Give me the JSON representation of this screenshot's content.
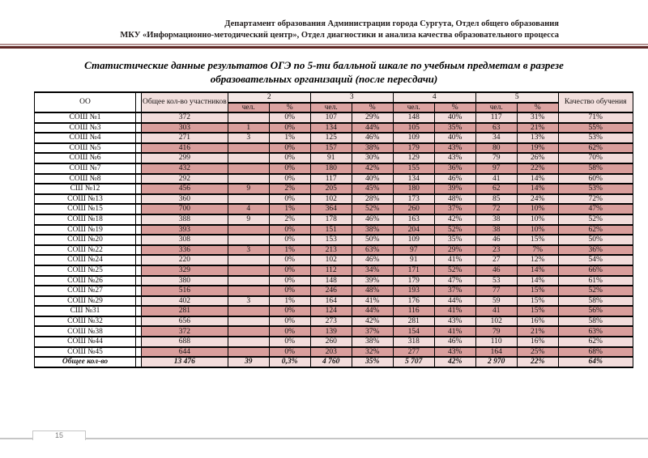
{
  "page_header": {
    "line1": "Департамент образования Администрации города Сургута, Отдел общего образования",
    "line2": "МКУ «Информационно-методический центр», Отдел диагностики и анализа качества образовательного процесса"
  },
  "title": "Статистические данные результатов ОГЭ по 5-ти балльной шкале по учебным предметам в разрезе образовательных организаций (после пересдачи)",
  "table": {
    "headers": {
      "oo": "ОО",
      "total_participants": "Общее кол-во участников",
      "grades": [
        "2",
        "3",
        "4",
        "5"
      ],
      "sub_people": "чел.",
      "sub_percent": "%",
      "quality": "Качество обучения"
    },
    "rows": [
      {
        "name": "СОШ №1",
        "cells": [
          "372",
          "",
          "0%",
          "107",
          "29%",
          "148",
          "40%",
          "117",
          "31%",
          "71%"
        ]
      },
      {
        "name": "СОШ №3",
        "cells": [
          "303",
          "1",
          "0%",
          "134",
          "44%",
          "105",
          "35%",
          "63",
          "21%",
          "55%"
        ]
      },
      {
        "name": "СОШ №4",
        "cells": [
          "271",
          "3",
          "1%",
          "125",
          "46%",
          "109",
          "40%",
          "34",
          "13%",
          "53%"
        ]
      },
      {
        "name": "СОШ №5",
        "cells": [
          "416",
          "",
          "0%",
          "157",
          "38%",
          "179",
          "43%",
          "80",
          "19%",
          "62%"
        ]
      },
      {
        "name": "СОШ №6",
        "cells": [
          "299",
          "",
          "0%",
          "91",
          "30%",
          "129",
          "43%",
          "79",
          "26%",
          "70%"
        ]
      },
      {
        "name": "СОШ №7",
        "cells": [
          "432",
          "",
          "0%",
          "180",
          "42%",
          "155",
          "36%",
          "97",
          "22%",
          "58%"
        ]
      },
      {
        "name": "СОШ №8",
        "cells": [
          "292",
          "",
          "0%",
          "117",
          "40%",
          "134",
          "46%",
          "41",
          "14%",
          "60%"
        ]
      },
      {
        "name": "СШ №12",
        "cells": [
          "456",
          "9",
          "2%",
          "205",
          "45%",
          "180",
          "39%",
          "62",
          "14%",
          "53%"
        ]
      },
      {
        "name": "СОШ №13",
        "cells": [
          "360",
          "",
          "0%",
          "102",
          "28%",
          "173",
          "48%",
          "85",
          "24%",
          "72%"
        ]
      },
      {
        "name": "СОШ №15",
        "cells": [
          "700",
          "4",
          "1%",
          "364",
          "52%",
          "260",
          "37%",
          "72",
          "10%",
          "47%"
        ]
      },
      {
        "name": "СОШ №18",
        "cells": [
          "388",
          "9",
          "2%",
          "178",
          "46%",
          "163",
          "42%",
          "38",
          "10%",
          "52%"
        ]
      },
      {
        "name": "СОШ №19",
        "cells": [
          "393",
          "",
          "0%",
          "151",
          "38%",
          "204",
          "52%",
          "38",
          "10%",
          "62%"
        ]
      },
      {
        "name": "СОШ №20",
        "cells": [
          "308",
          "",
          "0%",
          "153",
          "50%",
          "109",
          "35%",
          "46",
          "15%",
          "50%"
        ]
      },
      {
        "name": "СОШ №22",
        "cells": [
          "336",
          "3",
          "1%",
          "213",
          "63%",
          "97",
          "29%",
          "23",
          "7%",
          "36%"
        ]
      },
      {
        "name": "СОШ №24",
        "cells": [
          "220",
          "",
          "0%",
          "102",
          "46%",
          "91",
          "41%",
          "27",
          "12%",
          "54%"
        ]
      },
      {
        "name": "СОШ №25",
        "cells": [
          "329",
          "",
          "0%",
          "112",
          "34%",
          "171",
          "52%",
          "46",
          "14%",
          "66%"
        ]
      },
      {
        "name": "СОШ №26",
        "cells": [
          "380",
          "",
          "0%",
          "148",
          "39%",
          "179",
          "47%",
          "53",
          "14%",
          "61%"
        ]
      },
      {
        "name": "СОШ №27",
        "cells": [
          "516",
          "",
          "0%",
          "246",
          "48%",
          "193",
          "37%",
          "77",
          "15%",
          "52%"
        ]
      },
      {
        "name": "СОШ №29",
        "cells": [
          "402",
          "3",
          "1%",
          "164",
          "41%",
          "176",
          "44%",
          "59",
          "15%",
          "58%"
        ]
      },
      {
        "name": "СШ №31",
        "cells": [
          "281",
          "",
          "0%",
          "124",
          "44%",
          "116",
          "41%",
          "41",
          "15%",
          "56%"
        ]
      },
      {
        "name": "СОШ №32",
        "cells": [
          "656",
          "",
          "0%",
          "273",
          "42%",
          "281",
          "43%",
          "102",
          "16%",
          "58%"
        ]
      },
      {
        "name": "СОШ №38",
        "cells": [
          "372",
          "",
          "0%",
          "139",
          "37%",
          "154",
          "41%",
          "79",
          "21%",
          "63%"
        ]
      },
      {
        "name": "СОШ №44",
        "cells": [
          "688",
          "",
          "0%",
          "260",
          "38%",
          "318",
          "46%",
          "110",
          "16%",
          "62%"
        ]
      },
      {
        "name": "СОШ №45",
        "cells": [
          "644",
          "",
          "0%",
          "203",
          "32%",
          "277",
          "43%",
          "164",
          "25%",
          "68%"
        ]
      }
    ],
    "totals": {
      "name": "Общее кол-во",
      "cells": [
        "13 476",
        "39",
        "0,3%",
        "4 760",
        "35%",
        "5 707",
        "42%",
        "2 970",
        "22%",
        "64%"
      ]
    }
  },
  "footer": {
    "page_number": "15"
  },
  "colors": {
    "row_light": "#F2DCDB",
    "row_dark": "#D99E9C",
    "header_sub": "#DCA3A1",
    "header_light": "#F2DFDD",
    "rule_dark": "#5e2826",
    "rule_light": "#b59493"
  }
}
